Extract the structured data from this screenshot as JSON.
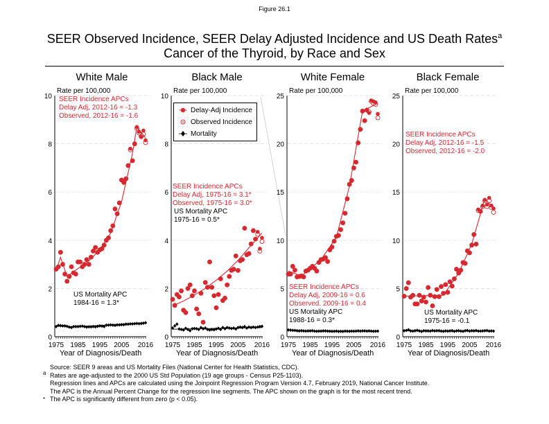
{
  "header": {
    "figure_label": "Figure 26.1",
    "title_line1": "SEER Observed Incidence, SEER Delay Adjusted Incidence and US Death Rates",
    "title_superscript": "a",
    "title_line2": "Cancer of the Thyroid, by Race and Sex"
  },
  "legend": {
    "items": [
      {
        "label": "Delay-Adj Incidence",
        "marker": "filled-circle"
      },
      {
        "label": "Observed Incidence",
        "marker": "open-circle"
      },
      {
        "label": "Mortality",
        "marker": "diamond"
      }
    ]
  },
  "colors": {
    "incidence": "#d7282f",
    "mortality": "#000000",
    "grid": "#d9d9d9"
  },
  "footnotes": {
    "source": "Source: SEER 9 areas and US Mortality Files (National Center for Health Statistics, CDC).",
    "a_marker": "a",
    "a_line1": "Rates are age-adjusted to the 2000 US Std Population (19 age groups - Census P25-1103).",
    "a_line2": "Regression lines and APCs are calculated using the Joinpoint Regression Program Version 4.7, February 2019, National Cancer Institute.",
    "a_line3": "The APC is the Annual Percent Change for the regression line segments. The APC shown on the graph is for the most recent trend.",
    "star_marker": "*",
    "star_line": "The APC is significantly different from zero (p < 0.05)."
  },
  "chart_data": [
    {
      "type": "scatter",
      "title": "White Male",
      "ylabel": "Rate per 100,000",
      "xlabel": "Year of Diagnosis/Death",
      "xlim": [
        1975,
        2016
      ],
      "ylim": [
        0,
        10
      ],
      "xticks": [
        1975,
        1985,
        1995,
        2005,
        2016
      ],
      "yticks": [
        0,
        2,
        4,
        6,
        8,
        10
      ],
      "grid": "horizontal dashed",
      "annotations": {
        "seer": [
          "SEER Incidence APCs",
          "Delay Adj, 2012-16 = -1.3",
          "Observed, 2012-16 = -1.6"
        ],
        "mortality": [
          "US Mortality APC",
          "1984-16 = 1.3*"
        ]
      },
      "years_start": 1975,
      "delay_adj": [
        2.8,
        2.9,
        3.5,
        3.0,
        2.6,
        2.3,
        2.5,
        2.9,
        2.65,
        2.6,
        3.1,
        3.1,
        2.9,
        3.0,
        3.2,
        3.0,
        3.3,
        3.55,
        3.7,
        3.5,
        3.6,
        3.65,
        3.8,
        4.0,
        4.1,
        4.4,
        4.6,
        5.3,
        5.1,
        5.55,
        6.5,
        6.4,
        6.55,
        7.1,
        7.8,
        7.3,
        8.0,
        8.7,
        8.5,
        8.3,
        8.55,
        8.15
      ],
      "observed": [
        2.8,
        2.9,
        3.5,
        3.0,
        2.6,
        2.3,
        2.5,
        2.9,
        2.65,
        2.6,
        3.1,
        3.1,
        2.9,
        3.0,
        3.2,
        3.0,
        3.3,
        3.55,
        3.7,
        3.5,
        3.6,
        3.65,
        3.8,
        4.0,
        4.1,
        4.4,
        4.6,
        5.3,
        5.1,
        5.55,
        6.5,
        6.4,
        6.55,
        7.1,
        7.75,
        7.3,
        8.0,
        8.65,
        8.45,
        8.3,
        8.4,
        8.05
      ],
      "mortality": [
        0.42,
        0.47,
        0.46,
        0.45,
        0.45,
        0.43,
        0.4,
        0.38,
        0.42,
        0.42,
        0.42,
        0.43,
        0.44,
        0.42,
        0.4,
        0.41,
        0.41,
        0.42,
        0.41,
        0.43,
        0.45,
        0.44,
        0.42,
        0.48,
        0.48,
        0.49,
        0.48,
        0.47,
        0.49,
        0.49,
        0.5,
        0.5,
        0.52,
        0.52,
        0.53,
        0.53,
        0.54,
        0.55,
        0.54,
        0.55,
        0.56,
        0.58
      ],
      "trend_incidence": [
        [
          1975,
          2.75
        ],
        [
          1977,
          3.3
        ],
        [
          1980,
          2.5
        ],
        [
          1990,
          3.15
        ],
        [
          1995,
          3.6
        ],
        [
          2000,
          4.3
        ],
        [
          2005,
          5.6
        ],
        [
          2010,
          7.6
        ],
        [
          2012,
          8.7
        ],
        [
          2016,
          8.25
        ]
      ],
      "trend_mortality": [
        [
          1975,
          0.44
        ],
        [
          1984,
          0.41
        ],
        [
          2016,
          0.58
        ]
      ]
    },
    {
      "type": "scatter",
      "title": "Black Male",
      "ylabel": "Rate per 100,000",
      "xlabel": "Year of Diagnosis/Death",
      "xlim": [
        1975,
        2016
      ],
      "ylim": [
        0,
        10
      ],
      "xticks": [
        1975,
        1985,
        1995,
        2005,
        2016
      ],
      "yticks": [
        0,
        2,
        4,
        6,
        8,
        10
      ],
      "grid": "horizontal dashed",
      "annotations": {
        "seer": [
          "SEER Incidence APCs",
          "Delay Adj, 1975-16 = 3.1*",
          "Observed, 1975-16 = 3.0*"
        ],
        "mortality": [
          "US Mortality APC",
          "1975-16 = 0.5*"
        ]
      },
      "years_start": 1975,
      "delay_adj": [
        1.55,
        1.3,
        1.75,
        1.65,
        1.9,
        1.1,
        1.0,
        2.0,
        2.15,
        1.7,
        1.9,
        1.15,
        0.95,
        1.8,
        0.6,
        2.25,
        2.05,
        3.1,
        2.05,
        1.7,
        1.2,
        1.75,
        2.4,
        1.5,
        1.6,
        2.15,
        2.5,
        2.75,
        2.8,
        3.35,
        2.75,
        3.15,
        3.2,
        4.5,
        3.4,
        3.45,
        3.85,
        4.4,
        4.05,
        4.35,
        3.65,
        4.1
      ],
      "observed": [
        1.55,
        1.3,
        1.75,
        1.65,
        1.9,
        1.1,
        1.0,
        2.0,
        2.15,
        1.7,
        1.9,
        1.15,
        0.95,
        1.8,
        0.6,
        2.25,
        2.05,
        3.1,
        2.05,
        1.7,
        1.2,
        1.75,
        2.4,
        1.5,
        1.6,
        2.15,
        2.5,
        2.75,
        2.8,
        3.35,
        2.75,
        3.15,
        3.2,
        4.5,
        3.4,
        3.45,
        3.85,
        4.4,
        4.05,
        4.25,
        3.55,
        3.95
      ],
      "mortality": [
        0.36,
        0.45,
        0.52,
        0.32,
        0.3,
        0.28,
        0.35,
        0.3,
        0.25,
        0.33,
        0.34,
        0.33,
        0.3,
        0.38,
        0.33,
        0.36,
        0.3,
        0.28,
        0.3,
        0.29,
        0.32,
        0.35,
        0.3,
        0.38,
        0.33,
        0.38,
        0.36,
        0.34,
        0.36,
        0.32,
        0.38,
        0.4,
        0.38,
        0.42,
        0.36,
        0.4,
        0.38,
        0.4,
        0.38,
        0.4,
        0.42,
        0.43
      ],
      "trend_incidence": [
        [
          1975,
          1.28
        ],
        [
          1980,
          1.48
        ],
        [
          1985,
          1.73
        ],
        [
          1990,
          2.01
        ],
        [
          1995,
          2.34
        ],
        [
          2000,
          2.72
        ],
        [
          2005,
          3.17
        ],
        [
          2010,
          3.69
        ],
        [
          2016,
          4.3
        ]
      ],
      "trend_mortality": [
        [
          1975,
          0.31
        ],
        [
          2016,
          0.38
        ]
      ]
    },
    {
      "type": "scatter",
      "title": "White Female",
      "ylabel": "Rate per 100,000",
      "xlabel": "Year of Diagnosis/Death",
      "xlim": [
        1975,
        2016
      ],
      "ylim": [
        0,
        25
      ],
      "xticks": [
        1975,
        1985,
        1995,
        2005,
        2016
      ],
      "yticks": [
        0,
        5,
        10,
        15,
        20,
        25
      ],
      "grid": "horizontal dashed",
      "annotations": {
        "seer": [
          "SEER Incidence APCs",
          "Delay Adj, 2009-16 = 0.6",
          "Observed. 2009-16 = 0.4"
        ],
        "mortality": [
          "US Mortality APC",
          "1988-16 = 0.3*"
        ]
      },
      "years_start": 1975,
      "delay_adj": [
        6.5,
        6.5,
        7.3,
        6.9,
        6.2,
        6.25,
        6.3,
        6.2,
        6.8,
        6.9,
        7.1,
        7.3,
        7.1,
        6.8,
        7.7,
        8.0,
        8.05,
        8.2,
        7.8,
        9.0,
        9.3,
        9.9,
        10.4,
        10.5,
        11.1,
        11.8,
        12.8,
        14.3,
        15.8,
        16.2,
        17.5,
        18.1,
        20.1,
        21.5,
        23.4,
        22.4,
        23.5,
        23.2,
        24.5,
        24.4,
        24.3,
        23.1
      ],
      "observed": [
        6.5,
        6.5,
        7.3,
        6.9,
        6.2,
        6.25,
        6.3,
        6.2,
        6.8,
        6.9,
        7.1,
        7.3,
        7.1,
        6.8,
        7.7,
        8.0,
        8.05,
        8.2,
        7.8,
        9.0,
        9.3,
        9.9,
        10.4,
        10.5,
        11.1,
        11.8,
        12.8,
        14.3,
        15.8,
        16.2,
        17.5,
        18.1,
        20.1,
        21.5,
        23.4,
        22.4,
        23.5,
        23.3,
        24.4,
        24.2,
        24.1,
        22.7
      ],
      "mortality": [
        0.7,
        0.68,
        0.66,
        0.65,
        0.62,
        0.6,
        0.62,
        0.6,
        0.58,
        0.6,
        0.6,
        0.62,
        0.58,
        0.56,
        0.58,
        0.58,
        0.6,
        0.6,
        0.58,
        0.57,
        0.56,
        0.56,
        0.58,
        0.55,
        0.56,
        0.55,
        0.58,
        0.57,
        0.56,
        0.58,
        0.57,
        0.58,
        0.6,
        0.58,
        0.6,
        0.6,
        0.58,
        0.6,
        0.58,
        0.56,
        0.57,
        0.58
      ],
      "trend_incidence": [
        [
          1975,
          6.8
        ],
        [
          1981,
          6.3
        ],
        [
          1990,
          8.0
        ],
        [
          1997,
          10.3
        ],
        [
          2003,
          15.6
        ],
        [
          2009,
          23.4
        ],
        [
          2016,
          24.2
        ]
      ],
      "trend_mortality": [
        [
          1975,
          0.68
        ],
        [
          1988,
          0.57
        ],
        [
          2016,
          0.59
        ]
      ]
    },
    {
      "type": "scatter",
      "title": "Black Female",
      "ylabel": "Rate per 100,000",
      "xlabel": "Year of Diagnosis/Death",
      "xlim": [
        1975,
        2016
      ],
      "ylim": [
        0,
        25
      ],
      "xticks": [
        1975,
        1985,
        1995,
        2005,
        2016
      ],
      "yticks": [
        0,
        5,
        10,
        15,
        20,
        25
      ],
      "grid": "horizontal dashed",
      "annotations": {
        "seer": [
          "SEER Incidence APCs",
          "Delay Adj, 2012-16 = -1.5",
          "Observed, 2012-16 = -2.0"
        ],
        "mortality": [
          "US Mortality APC",
          "1975-16 = -0.1"
        ]
      },
      "years_start": 1975,
      "delay_adj": [
        4.2,
        5.0,
        5.6,
        4.1,
        4.3,
        3.4,
        3.4,
        4.3,
        3.7,
        4.1,
        3.6,
        5.1,
        4.3,
        3.2,
        4.15,
        4.9,
        4.15,
        5.2,
        4.5,
        5.4,
        4.6,
        5.7,
        5.25,
        6.0,
        7.0,
        6.6,
        6.9,
        7.7,
        7.6,
        8.9,
        8.7,
        9.5,
        10.6,
        9.6,
        13.2,
        13.0,
        13.6,
        14.2,
        13.7,
        14.4,
        13.6,
        13.3
      ],
      "observed": [
        4.2,
        5.0,
        5.6,
        4.1,
        4.3,
        3.4,
        3.4,
        4.3,
        3.7,
        4.1,
        3.6,
        5.1,
        4.3,
        3.2,
        4.15,
        4.9,
        4.15,
        5.2,
        4.5,
        5.4,
        4.6,
        5.7,
        5.25,
        6.0,
        7.0,
        6.6,
        6.9,
        7.7,
        7.6,
        8.9,
        8.7,
        9.5,
        10.6,
        9.6,
        13.1,
        13.0,
        13.5,
        14.1,
        13.5,
        14.1,
        13.4,
        12.9
      ],
      "mortality": [
        0.62,
        0.65,
        0.72,
        0.6,
        0.58,
        0.62,
        0.66,
        0.6,
        0.55,
        0.62,
        0.6,
        0.6,
        0.58,
        0.64,
        0.6,
        0.62,
        0.62,
        0.58,
        0.56,
        0.6,
        0.58,
        0.6,
        0.62,
        0.56,
        0.6,
        0.62,
        0.58,
        0.56,
        0.62,
        0.64,
        0.58,
        0.62,
        0.6,
        0.64,
        0.58,
        0.58,
        0.6,
        0.62,
        0.64,
        0.58,
        0.6,
        0.58
      ],
      "trend_incidence": [
        [
          1975,
          4.2
        ],
        [
          1993,
          4.3
        ],
        [
          2000,
          6.6
        ],
        [
          2006,
          9.6
        ],
        [
          2012,
          14.3
        ],
        [
          2016,
          13.3
        ]
      ],
      "trend_mortality": [
        [
          1975,
          0.61
        ],
        [
          2016,
          0.6
        ]
      ]
    }
  ]
}
